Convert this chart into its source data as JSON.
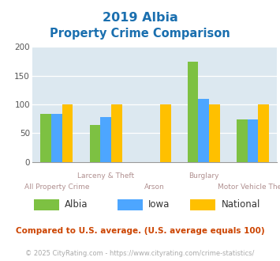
{
  "title_line1": "2019 Albia",
  "title_line2": "Property Crime Comparison",
  "categories": [
    "All Property Crime",
    "Larceny & Theft",
    "Arson",
    "Burglary",
    "Motor Vehicle Theft"
  ],
  "cat_labels_top": [
    "",
    "Larceny & Theft",
    "",
    "Burglary",
    ""
  ],
  "cat_labels_bot": [
    "All Property Crime",
    "",
    "Arson",
    "",
    "Motor Vehicle Theft"
  ],
  "series": {
    "Albia": [
      83,
      64,
      0,
      174,
      74
    ],
    "Iowa": [
      83,
      78,
      0,
      109,
      74
    ],
    "National": [
      100,
      100,
      100,
      100,
      100
    ]
  },
  "colors": {
    "Albia": "#7dc142",
    "Iowa": "#4da6ff",
    "National": "#ffc000"
  },
  "ylim": [
    0,
    200
  ],
  "yticks": [
    0,
    50,
    100,
    150,
    200
  ],
  "plot_bg": "#dce8f0",
  "title_color": "#1a6faf",
  "xlabel_color": "#b09090",
  "footer_note": "Compared to U.S. average. (U.S. average equals 100)",
  "footer_url": "© 2025 CityRating.com - https://www.cityrating.com/crime-statistics/",
  "footer_note_color": "#cc4400",
  "footer_url_color": "#aaaaaa",
  "legend_labels": [
    "Albia",
    "Iowa",
    "National"
  ]
}
